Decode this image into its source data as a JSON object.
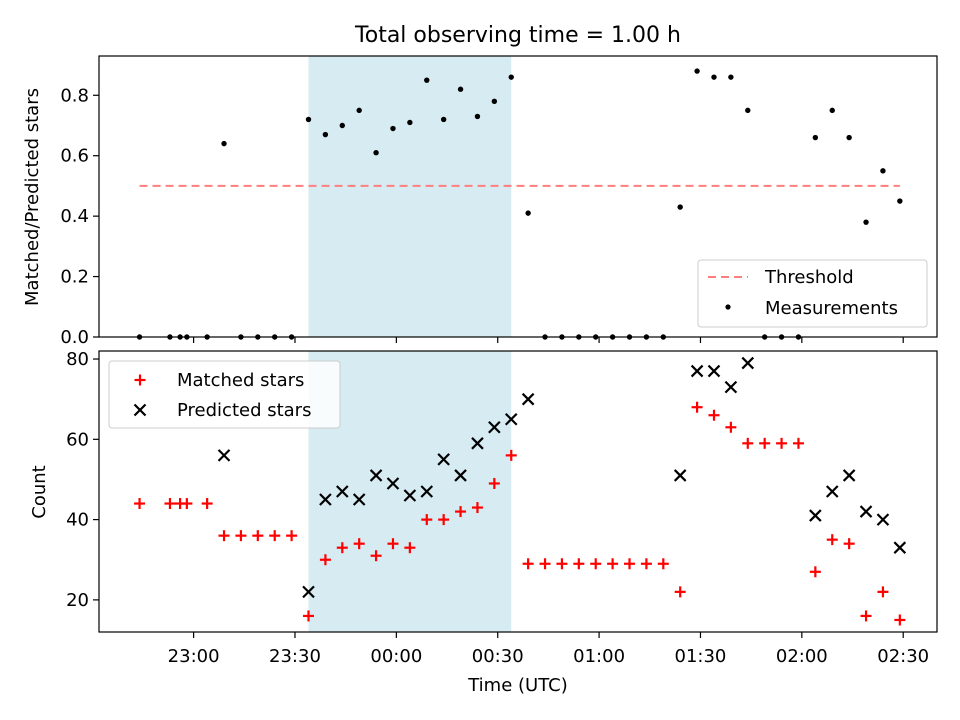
{
  "chart_data": {
    "title": "Total observing time = 1.00 h",
    "xlabel": "Time (UTC)",
    "x_tick_labels": [
      "23:00",
      "23:30",
      "00:00",
      "00:30",
      "01:00",
      "01:30",
      "02:00",
      "02:30"
    ],
    "x_ticks_minutes": [
      0,
      30,
      60,
      90,
      120,
      150,
      180,
      210
    ],
    "xlim_minutes": [
      -28,
      220
    ],
    "highlight_span_minutes": [
      34,
      94
    ],
    "panels": [
      {
        "type": "scatter",
        "ylabel": "Matched/Predicted stars",
        "ylim": [
          0,
          0.93
        ],
        "y_ticks": [
          0.0,
          0.2,
          0.4,
          0.6,
          0.8
        ],
        "y_tick_labels": [
          "0.0",
          "0.2",
          "0.4",
          "0.6",
          "0.8"
        ],
        "legend_position": "lower right",
        "threshold": {
          "name": "Threshold",
          "value": 0.5,
          "x_range_minutes": [
            -16,
            209
          ],
          "color": "#ff7f7f"
        },
        "series": [
          {
            "name": "Measurements",
            "color": "#000000",
            "marker": "dot",
            "x_minutes": [
              -16,
              -7,
              -4,
              -2,
              4,
              9,
              14,
              19,
              24,
              29,
              34,
              39,
              44,
              49,
              54,
              59,
              64,
              69,
              74,
              79,
              84,
              89,
              94,
              99,
              104,
              109,
              114,
              119,
              124,
              129,
              134,
              139,
              144,
              149,
              154,
              159,
              164,
              169,
              174,
              179,
              184,
              189,
              194,
              199,
              204,
              209
            ],
            "y": [
              0.0,
              0.0,
              0.0,
              0.0,
              0.0,
              0.64,
              0.0,
              0.0,
              0.0,
              0.0,
              0.72,
              0.67,
              0.7,
              0.75,
              0.61,
              0.69,
              0.71,
              0.85,
              0.72,
              0.82,
              0.73,
              0.78,
              0.86,
              0.41,
              0.0,
              0.0,
              0.0,
              0.0,
              0.0,
              0.0,
              0.0,
              0.0,
              0.43,
              0.88,
              0.86,
              0.86,
              0.75,
              0.0,
              0.0,
              0.0,
              0.66,
              0.75,
              0.66,
              0.38,
              0.55,
              0.45
            ]
          }
        ]
      },
      {
        "type": "scatter",
        "ylabel": "Count",
        "ylim": [
          12,
          82
        ],
        "y_ticks": [
          20,
          40,
          60,
          80
        ],
        "y_tick_labels": [
          "20",
          "40",
          "60",
          "80"
        ],
        "legend_position": "upper left",
        "series": [
          {
            "name": "Matched stars",
            "color": "#ff0000",
            "marker": "plus",
            "x_minutes": [
              -16,
              -7,
              -4,
              -2,
              4,
              9,
              14,
              19,
              24,
              29,
              34,
              39,
              44,
              49,
              54,
              59,
              64,
              69,
              74,
              79,
              84,
              89,
              94,
              99,
              104,
              109,
              114,
              119,
              124,
              129,
              134,
              139,
              144,
              149,
              154,
              159,
              164,
              169,
              174,
              179,
              184,
              189,
              194,
              199,
              204,
              209
            ],
            "y": [
              44,
              44,
              44,
              44,
              44,
              36,
              36,
              36,
              36,
              36,
              16,
              30,
              33,
              34,
              31,
              34,
              33,
              40,
              40,
              42,
              43,
              49,
              56,
              29,
              29,
              29,
              29,
              29,
              29,
              29,
              29,
              29,
              22,
              68,
              66,
              63,
              59,
              59,
              59,
              59,
              27,
              35,
              34,
              16,
              22,
              15
            ]
          },
          {
            "name": "Predicted stars",
            "color": "#000000",
            "marker": "x",
            "x_minutes": [
              9,
              34,
              39,
              44,
              49,
              54,
              59,
              64,
              69,
              74,
              79,
              84,
              89,
              94,
              99,
              144,
              149,
              154,
              159,
              164,
              184,
              189,
              194,
              199,
              204,
              209
            ],
            "y": [
              56,
              22,
              45,
              47,
              45,
              51,
              49,
              46,
              47,
              55,
              51,
              59,
              63,
              65,
              70,
              51,
              77,
              77,
              73,
              79,
              41,
              47,
              51,
              42,
              40,
              33
            ]
          }
        ]
      }
    ]
  },
  "colors": {
    "span": "#add8e6",
    "threshold": "#ff7f7f",
    "matched": "#ff0000",
    "predicted": "#000000",
    "measurement": "#000000"
  }
}
